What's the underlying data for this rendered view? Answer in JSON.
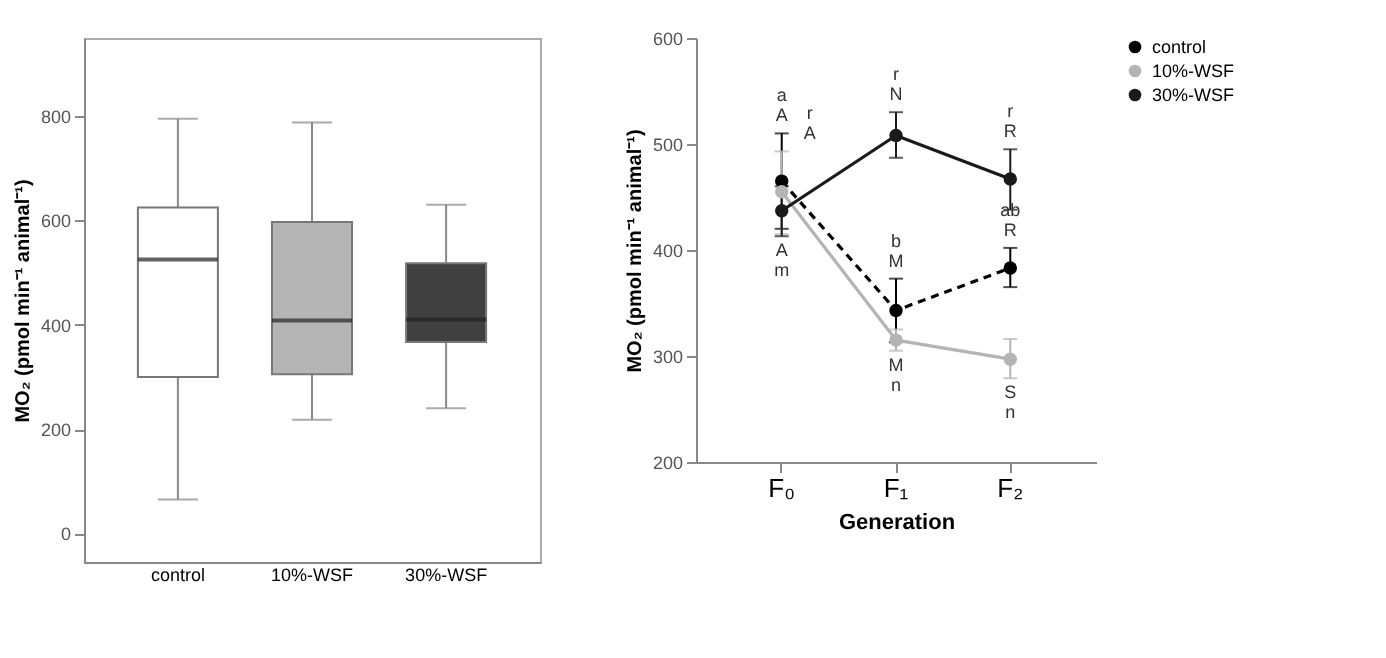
{
  "chart_data": [
    {
      "type": "box",
      "ylabel": "MO₂ (pmol min⁻¹ animal⁻¹)",
      "categories": [
        "control",
        "10%-WSF",
        "30%-WSF"
      ],
      "boxes": [
        {
          "low": 65,
          "q1": 300,
          "median": 525,
          "q3": 625,
          "high": 795
        },
        {
          "low": 218,
          "q1": 305,
          "median": 408,
          "q3": 597,
          "high": 788
        },
        {
          "low": 240,
          "q1": 367,
          "median": 410,
          "q3": 518,
          "high": 630
        }
      ],
      "colors": [
        "#ffffff",
        "#b4b4b4",
        "#404040"
      ],
      "ylim": [
        -55,
        950
      ],
      "yticks": [
        0,
        200,
        400,
        600,
        800
      ],
      "grid": false
    },
    {
      "type": "line",
      "xlabel": "Generation",
      "ylabel": "MO₂ (pmol min⁻¹ animal⁻¹)",
      "categories": [
        "F₀",
        "F₁",
        "F₂"
      ],
      "series": [
        {
          "name": "control",
          "color": "#000000",
          "line_style": "dashed",
          "values": [
            465,
            343,
            383
          ],
          "errors": [
            [
              420,
              510
            ],
            [
              313,
              373
            ],
            [
              365,
              402
            ]
          ]
        },
        {
          "name": "10%-WSF",
          "color": "#b4b4b4",
          "line_style": "solid",
          "values": [
            455,
            315,
            297
          ],
          "errors": [
            [
              415,
              493
            ],
            [
              305,
              325
            ],
            [
              279,
              316
            ]
          ]
        },
        {
          "name": "30%-WSF",
          "color": "#1a1a1a",
          "line_style": "solid",
          "values": [
            437,
            508,
            467
          ],
          "errors": [
            [
              413,
              460
            ],
            [
              487,
              530
            ],
            [
              438,
              495
            ]
          ]
        }
      ],
      "ylim": [
        200,
        600
      ],
      "yticks": [
        200,
        300,
        400,
        500,
        600
      ],
      "marker": "circle",
      "grid": false,
      "legend": "top right",
      "annotations": [
        {
          "text": "a\nA",
          "x": "F₀",
          "y": 510
        },
        {
          "text": "r\nA",
          "x": "F₀",
          "y": 493
        },
        {
          "text": "A\nm",
          "x": "F₀",
          "y": 413
        },
        {
          "text": "r\nN",
          "x": "F₁",
          "y": 530
        },
        {
          "text": "b\nM",
          "x": "F₁",
          "y": 373
        },
        {
          "text": "M\nn",
          "x": "F₁",
          "y": 305
        },
        {
          "text": "r\nR",
          "x": "F₂",
          "y": 495
        },
        {
          "text": "ab\nR",
          "x": "F₂",
          "y": 402
        },
        {
          "text": "S\nn",
          "x": "F₂",
          "y": 279
        }
      ]
    }
  ]
}
